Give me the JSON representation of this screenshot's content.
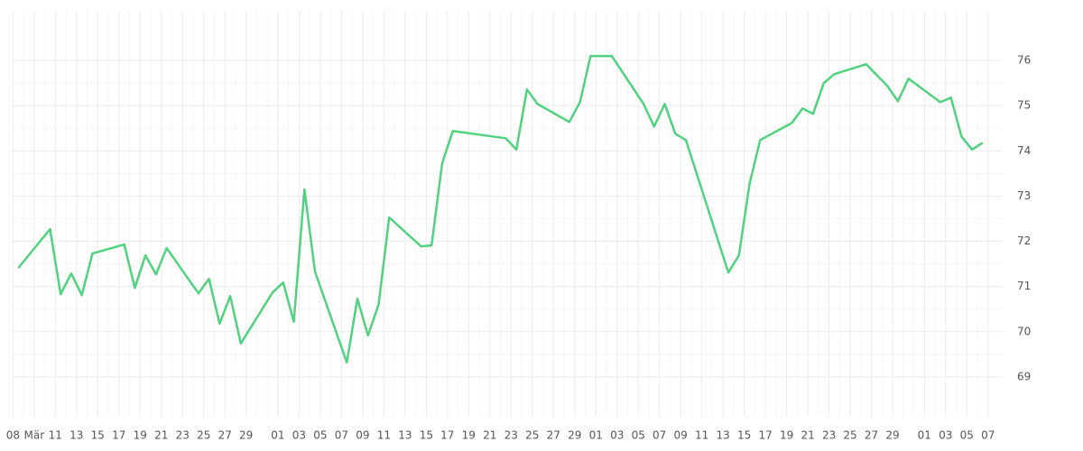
{
  "chart_data": {
    "type": "line",
    "x": [
      0,
      3,
      4,
      5,
      6,
      7,
      10,
      11,
      12,
      13,
      14,
      17,
      18,
      19,
      20,
      21,
      24,
      25,
      26,
      27,
      28,
      31,
      32,
      33,
      34,
      35,
      38,
      39,
      40,
      41,
      46,
      47,
      48,
      49,
      52,
      53,
      54,
      56,
      59,
      60,
      61,
      62,
      63,
      67,
      68,
      69,
      70,
      73,
      74,
      75,
      76,
      77,
      80,
      82,
      83,
      84,
      87,
      88,
      89,
      90,
      91
    ],
    "series": [
      {
        "color": "#50d27f",
        "values": [
          71.41,
          72.27,
          70.83,
          71.29,
          70.81,
          71.73,
          71.93,
          70.97,
          71.69,
          71.27,
          71.85,
          70.85,
          71.17,
          70.18,
          70.79,
          69.74,
          70.87,
          71.09,
          70.22,
          73.15,
          71.33,
          69.32,
          70.73,
          69.92,
          70.6,
          72.53,
          71.89,
          71.91,
          73.73,
          74.44,
          74.28,
          74.03,
          75.36,
          75.04,
          74.64,
          75.08,
          76.1,
          76.1,
          75.04,
          74.54,
          75.04,
          74.38,
          74.24,
          71.31,
          71.69,
          73.27,
          74.24,
          74.62,
          74.94,
          74.82,
          75.5,
          75.7,
          75.92,
          75.44,
          75.1,
          75.6,
          75.08,
          75.18,
          74.32,
          74.03,
          74.18
        ]
      }
    ],
    "xlim": [
      -0.7,
      92.8
    ],
    "xticks": [
      {
        "value": -0.5,
        "label": "08"
      },
      {
        "value": 1.5,
        "label": "Mär"
      },
      {
        "value": 3.5,
        "label": "11"
      },
      {
        "value": 5.5,
        "label": "13"
      },
      {
        "value": 7.5,
        "label": "15"
      },
      {
        "value": 9.5,
        "label": "17"
      },
      {
        "value": 11.5,
        "label": "19"
      },
      {
        "value": 13.5,
        "label": "21"
      },
      {
        "value": 15.5,
        "label": "23"
      },
      {
        "value": 17.5,
        "label": "25"
      },
      {
        "value": 19.5,
        "label": "27"
      },
      {
        "value": 21.5,
        "label": "29"
      },
      {
        "value": 24.5,
        "label": "01"
      },
      {
        "value": 26.5,
        "label": "03"
      },
      {
        "value": 28.5,
        "label": "05"
      },
      {
        "value": 30.5,
        "label": "07"
      },
      {
        "value": 32.5,
        "label": "09"
      },
      {
        "value": 34.5,
        "label": "11"
      },
      {
        "value": 36.5,
        "label": "13"
      },
      {
        "value": 38.5,
        "label": "15"
      },
      {
        "value": 40.5,
        "label": "17"
      },
      {
        "value": 42.5,
        "label": "19"
      },
      {
        "value": 44.5,
        "label": "21"
      },
      {
        "value": 46.5,
        "label": "23"
      },
      {
        "value": 48.5,
        "label": "25"
      },
      {
        "value": 50.5,
        "label": "27"
      },
      {
        "value": 52.5,
        "label": "29"
      },
      {
        "value": 54.5,
        "label": "01"
      },
      {
        "value": 56.5,
        "label": "03"
      },
      {
        "value": 58.5,
        "label": "05"
      },
      {
        "value": 60.5,
        "label": "07"
      },
      {
        "value": 62.5,
        "label": "09"
      },
      {
        "value": 64.5,
        "label": "11"
      },
      {
        "value": 66.5,
        "label": "13"
      },
      {
        "value": 68.5,
        "label": "15"
      },
      {
        "value": 70.5,
        "label": "17"
      },
      {
        "value": 72.5,
        "label": "19"
      },
      {
        "value": 74.5,
        "label": "21"
      },
      {
        "value": 76.5,
        "label": "23"
      },
      {
        "value": 78.5,
        "label": "25"
      },
      {
        "value": 80.5,
        "label": "27"
      },
      {
        "value": 82.5,
        "label": "29"
      },
      {
        "value": 85.5,
        "label": "01"
      },
      {
        "value": 87.5,
        "label": "03"
      },
      {
        "value": 89.5,
        "label": "05"
      },
      {
        "value": 91.5,
        "label": "07"
      }
    ],
    "ylim": [
      68.12,
      77.1
    ],
    "yticks": [
      69,
      70,
      71,
      72,
      73,
      74,
      75,
      76
    ],
    "grid": true
  }
}
